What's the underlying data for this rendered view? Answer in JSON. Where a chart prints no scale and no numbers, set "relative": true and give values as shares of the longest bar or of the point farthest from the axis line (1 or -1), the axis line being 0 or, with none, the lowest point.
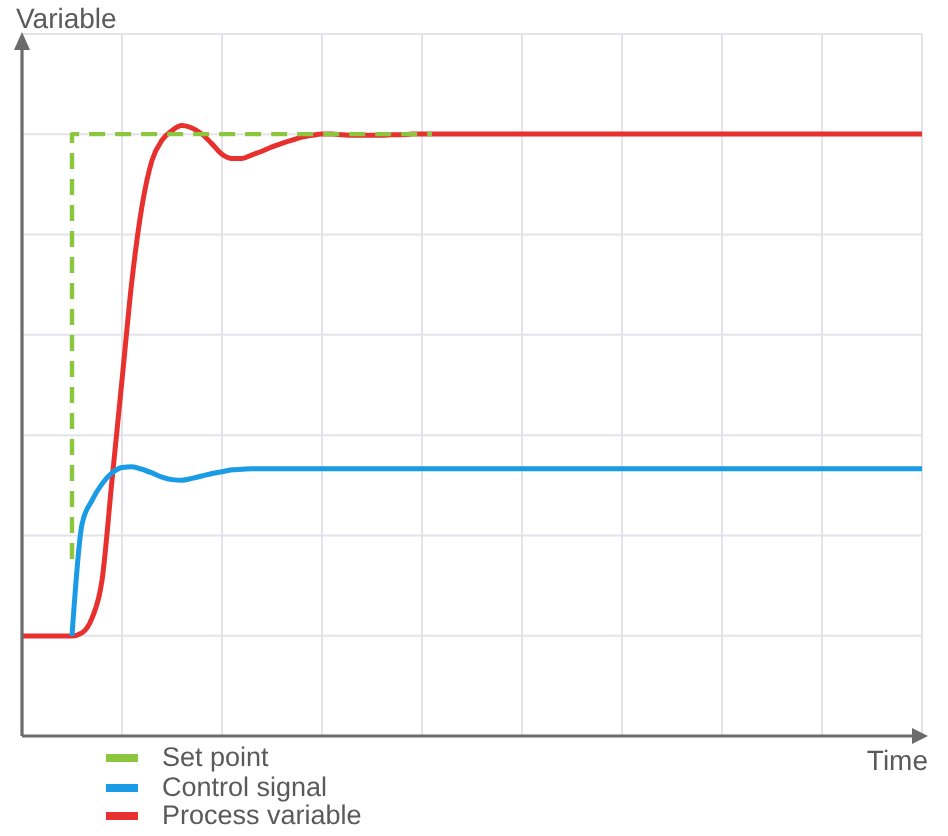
{
  "chart_data": {
    "type": "line",
    "xlabel": "Time",
    "ylabel": "Variable",
    "relative": true,
    "categories": [
      null,
      null,
      null,
      null,
      null,
      null,
      null,
      null,
      null,
      null,
      null,
      null,
      null,
      null,
      null,
      null,
      null,
      null,
      null,
      null,
      null,
      null,
      null,
      null,
      null,
      null,
      null,
      null,
      null,
      null,
      null,
      null,
      null,
      null,
      null,
      null,
      null,
      null,
      null,
      null,
      null,
      null,
      null,
      null,
      null,
      null,
      null,
      null,
      null,
      null,
      null,
      null,
      null,
      null,
      null,
      null,
      null,
      null,
      null,
      null,
      null,
      null,
      null,
      null,
      null,
      null,
      null,
      null,
      null,
      null,
      null,
      null,
      null,
      null,
      null,
      null,
      null,
      null,
      null,
      null,
      null,
      null,
      null,
      null,
      null,
      null,
      null,
      null,
      null,
      null,
      null
    ],
    "series": [
      {
        "name": "Set point",
        "type": "step",
        "line_style": "dashed",
        "color": "#8cc63e",
        "values": [
          null,
          null,
          null,
          null,
          null,
          0.29,
          0.986,
          0.986,
          0.986,
          0.986,
          0.986,
          0.986,
          0.986,
          0.986,
          0.986,
          0.986,
          0.986,
          0.986,
          0.986,
          0.986,
          0.986,
          0.986,
          0.986,
          0.986,
          0.986,
          0.986,
          0.986,
          0.986,
          0.986,
          0.986,
          0.986,
          0.986,
          0.986,
          0.986,
          0.986,
          0.986,
          0.986,
          0.986,
          0.986,
          0.986,
          0.986,
          0.986,
          null,
          null,
          null,
          null,
          null,
          null,
          null,
          null,
          null,
          null,
          null,
          null,
          null,
          null,
          null,
          null,
          null,
          null,
          null,
          null,
          null,
          null,
          null,
          null,
          null,
          null,
          null,
          null,
          null,
          null,
          null,
          null,
          null,
          null,
          null,
          null,
          null,
          null,
          null,
          null,
          null,
          null,
          null,
          null,
          null,
          null,
          null,
          null,
          null
        ]
      },
      {
        "name": "Control signal",
        "color": "#1a9be6",
        "values": [
          null,
          null,
          null,
          null,
          null,
          0.164,
          0.347,
          0.386,
          0.413,
          0.431,
          0.44,
          0.441,
          0.437,
          0.431,
          0.424,
          0.42,
          0.419,
          0.422,
          0.426,
          0.43,
          0.433,
          0.436,
          0.437,
          0.438,
          0.438,
          0.438,
          0.438,
          0.438,
          0.438,
          0.438,
          0.438,
          0.438,
          0.438,
          0.438,
          0.438,
          0.438,
          0.438,
          0.438,
          0.438,
          0.438,
          0.438,
          0.438,
          0.438,
          0.438,
          0.438,
          0.438,
          0.438,
          0.438,
          0.438,
          0.438,
          0.438,
          0.438,
          0.438,
          0.438,
          0.438,
          0.438,
          0.438,
          0.438,
          0.438,
          0.438,
          0.438,
          0.438,
          0.438,
          0.438,
          0.438,
          0.438,
          0.438,
          0.438,
          0.438,
          0.438,
          0.438,
          0.438,
          0.438,
          0.438,
          0.438,
          0.438,
          0.438,
          0.438,
          0.438,
          0.438,
          0.438,
          0.438,
          0.438,
          0.438,
          0.438,
          0.438,
          0.438,
          0.438,
          0.438,
          0.438,
          0.438
        ]
      },
      {
        "name": "Process variable",
        "color": "#e8312f",
        "values": [
          0.164,
          0.164,
          0.164,
          0.164,
          0.164,
          0.164,
          0.169,
          0.193,
          0.255,
          0.419,
          0.583,
          0.747,
          0.868,
          0.943,
          0.976,
          0.992,
          1,
          0.996,
          0.986,
          0.97,
          0.953,
          0.946,
          0.946,
          0.952,
          0.958,
          0.965,
          0.971,
          0.976,
          0.981,
          0.984,
          0.986,
          0.986,
          0.985,
          0.984,
          0.984,
          0.984,
          0.984,
          0.985,
          0.985,
          0.986,
          0.986,
          0.986,
          0.986,
          0.986,
          0.986,
          0.986,
          0.986,
          0.986,
          0.986,
          0.986,
          0.986,
          0.986,
          0.986,
          0.986,
          0.986,
          0.986,
          0.986,
          0.986,
          0.986,
          0.986,
          0.986,
          0.986,
          0.986,
          0.986,
          0.986,
          0.986,
          0.986,
          0.986,
          0.986,
          0.986,
          0.986,
          0.986,
          0.986,
          0.986,
          0.986,
          0.986,
          0.986,
          0.986,
          0.986,
          0.986,
          0.986,
          0.986,
          0.986,
          0.986,
          0.986,
          0.986,
          0.986,
          0.986,
          0.986,
          0.986,
          0.986
        ]
      }
    ],
    "grid": true,
    "legend": "bottom",
    "marker": "none"
  }
}
